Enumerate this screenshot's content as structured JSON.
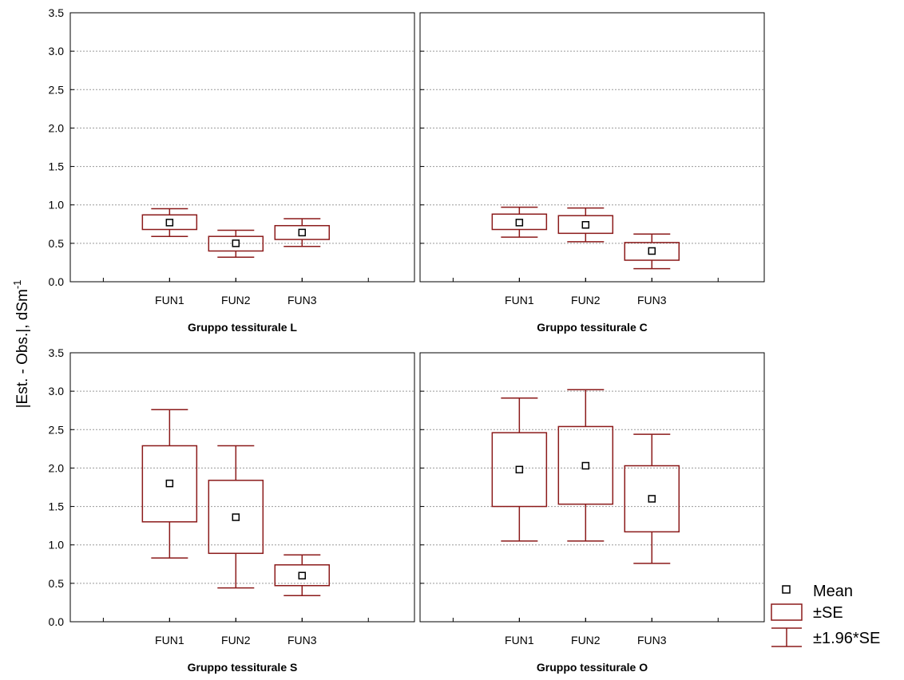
{
  "ylabel": "|Est. - Obs.|, dSm",
  "ylabel_sup": "-1",
  "colors": {
    "box": "#8b1a1a",
    "grid": "#9a9a9a",
    "axis": "#000000"
  },
  "legend": {
    "placement": "bottom-right",
    "items": [
      {
        "label": "Mean",
        "icon": "mean-square-marker"
      },
      {
        "label": "±SE",
        "icon": "se-box"
      },
      {
        "label": "±1.96*SE",
        "icon": "whisker-marker"
      }
    ]
  },
  "chart_data": [
    {
      "type": "boxplot",
      "title": "Gruppo tessiturale L",
      "categories": [
        "FUN1",
        "FUN2",
        "FUN3"
      ],
      "ylim": [
        0,
        3.5
      ],
      "yticks": [
        "0.0",
        "0.5",
        "1.0",
        "1.5",
        "2.0",
        "2.5",
        "3.0",
        "3.5"
      ],
      "grid": true,
      "mean": [
        0.77,
        0.5,
        0.64
      ],
      "se_low": [
        0.68,
        0.4,
        0.55
      ],
      "se_high": [
        0.87,
        0.59,
        0.73
      ],
      "ci_low": [
        0.59,
        0.32,
        0.46
      ],
      "ci_high": [
        0.95,
        0.67,
        0.82
      ]
    },
    {
      "type": "boxplot",
      "title": "Gruppo tessiturale C",
      "categories": [
        "FUN1",
        "FUN2",
        "FUN3"
      ],
      "ylim": [
        0,
        3.5
      ],
      "yticks": [
        "0.0",
        "0.5",
        "1.0",
        "1.5",
        "2.0",
        "2.5",
        "3.0",
        "3.5"
      ],
      "grid": true,
      "mean": [
        0.77,
        0.74,
        0.4
      ],
      "se_low": [
        0.68,
        0.63,
        0.28
      ],
      "se_high": [
        0.88,
        0.86,
        0.51
      ],
      "ci_low": [
        0.58,
        0.52,
        0.17
      ],
      "ci_high": [
        0.97,
        0.96,
        0.62
      ]
    },
    {
      "type": "boxplot",
      "title": "Gruppo tessiturale S",
      "categories": [
        "FUN1",
        "FUN2",
        "FUN3"
      ],
      "ylim": [
        0,
        3.5
      ],
      "yticks": [
        "0.0",
        "0.5",
        "1.0",
        "1.5",
        "2.0",
        "2.5",
        "3.0",
        "3.5"
      ],
      "grid": true,
      "mean": [
        1.8,
        1.36,
        0.6
      ],
      "se_low": [
        1.3,
        0.89,
        0.47
      ],
      "se_high": [
        2.29,
        1.84,
        0.74
      ],
      "ci_low": [
        0.83,
        0.44,
        0.34
      ],
      "ci_high": [
        2.76,
        2.29,
        0.87
      ]
    },
    {
      "type": "boxplot",
      "title": "Gruppo tessiturale O",
      "categories": [
        "FUN1",
        "FUN2",
        "FUN3"
      ],
      "ylim": [
        0,
        3.5
      ],
      "yticks": [
        "0.0",
        "0.5",
        "1.0",
        "1.5",
        "2.0",
        "2.5",
        "3.0",
        "3.5"
      ],
      "grid": true,
      "mean": [
        1.98,
        2.03,
        1.6
      ],
      "se_low": [
        1.5,
        1.53,
        1.17
      ],
      "se_high": [
        2.46,
        2.54,
        2.03
      ],
      "ci_low": [
        1.05,
        1.05,
        0.76
      ],
      "ci_high": [
        2.91,
        3.02,
        2.44
      ]
    }
  ]
}
